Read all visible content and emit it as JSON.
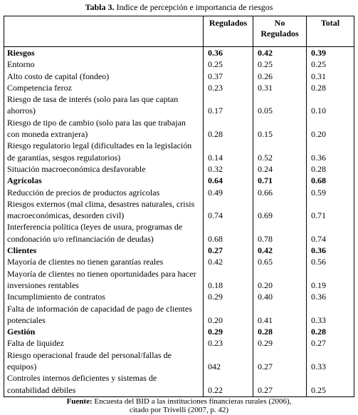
{
  "title": {
    "label": "Tabla 3.",
    "text": "Indice de percepción e importancia de riesgos"
  },
  "table": {
    "columns": [
      "Regulados",
      "No Regulados",
      "Total"
    ],
    "rows": [
      {
        "label": "Riesgos",
        "values": [
          "0.36",
          "0.42",
          "0.39"
        ],
        "bold": true
      },
      {
        "label": "Entorno",
        "values": [
          "0.25",
          "0.25",
          "0.25"
        ]
      },
      {
        "label": "Alto costo de capital (fondeo)",
        "values": [
          "0.37",
          "0.26",
          "0.31"
        ]
      },
      {
        "label": "Competencia feroz",
        "values": [
          "0.23",
          "0.31",
          "0.28"
        ]
      },
      {
        "label": "Riesgo de tasa de interés (solo para las que captan ahorros)",
        "values": [
          "0.17",
          "0.05",
          "0.10"
        ]
      },
      {
        "label": "Riesgo de tipo de cambio (solo para las que trabajan con moneda extranjera)",
        "values": [
          "0.28",
          "0.15",
          "0.20"
        ]
      },
      {
        "label": "Riesgo regulatorio legal (dificultades en la legislación de garantías, sesgos regulatorios)",
        "values": [
          "0.14",
          "0.52",
          "0.36"
        ]
      },
      {
        "label": "Situación macroeconómica desfavorable",
        "values": [
          "0.32",
          "0.24",
          "0.28"
        ]
      },
      {
        "label": "Agrícolas",
        "values": [
          "0.64",
          "0.71",
          "0.68"
        ],
        "bold": true
      },
      {
        "label": "Reducción de precios de productos agrícolas",
        "values": [
          "0.49",
          "0.66",
          "0.59"
        ]
      },
      {
        "label": "Riesgos externos (mal clima, desastres naturales, crisis macroeconómicas, desorden civil)",
        "values": [
          "0.74",
          "0.69",
          "0.71"
        ]
      },
      {
        "label": "Interferencia política (leyes de usura, programas de condonación u/o refinanciación de deudas)",
        "values": [
          "0.68",
          "0.78",
          "0.74"
        ]
      },
      {
        "label": "Clientes",
        "values": [
          "0.27",
          "0.42",
          "0.36"
        ],
        "bold": true
      },
      {
        "label": "Mayoría de clientes no tienen garantías reales",
        "values": [
          "0.42",
          "0.65",
          "0.56"
        ]
      },
      {
        "label": "Mayoría de clientes no tienen oportunidades para hacer inversiones rentables",
        "values": [
          "0.18",
          "0.20",
          "0.19"
        ]
      },
      {
        "label": "Incumplimiento de contratos",
        "values": [
          "0.29",
          "0.40",
          "0.36"
        ]
      },
      {
        "label": "Falta de información de capacidad de pago de clientes potenciales",
        "values": [
          "0.20",
          "0.41",
          "0.33"
        ]
      },
      {
        "label": "Gestión",
        "values": [
          "0.29",
          "0.28",
          "0.28"
        ],
        "bold": true
      },
      {
        "label": "Falta de liquidez",
        "values": [
          "0.23",
          "0.29",
          "0.27"
        ]
      },
      {
        "label": "Riesgo operacional fraude del personal/fallas de equipos)",
        "values": [
          "042",
          "0.27",
          "0.33"
        ]
      },
      {
        "label": "Controles internos deficientes y sistemas de contabilidad débiles",
        "values": [
          "0.22",
          "0.27",
          "0.25"
        ]
      }
    ]
  },
  "source": {
    "label": "Fuente:",
    "lines": [
      "Encuesta del BID a las instituciones financieras rurales (2006),",
      "citado por Trivelli (2007, p. 42)"
    ]
  }
}
